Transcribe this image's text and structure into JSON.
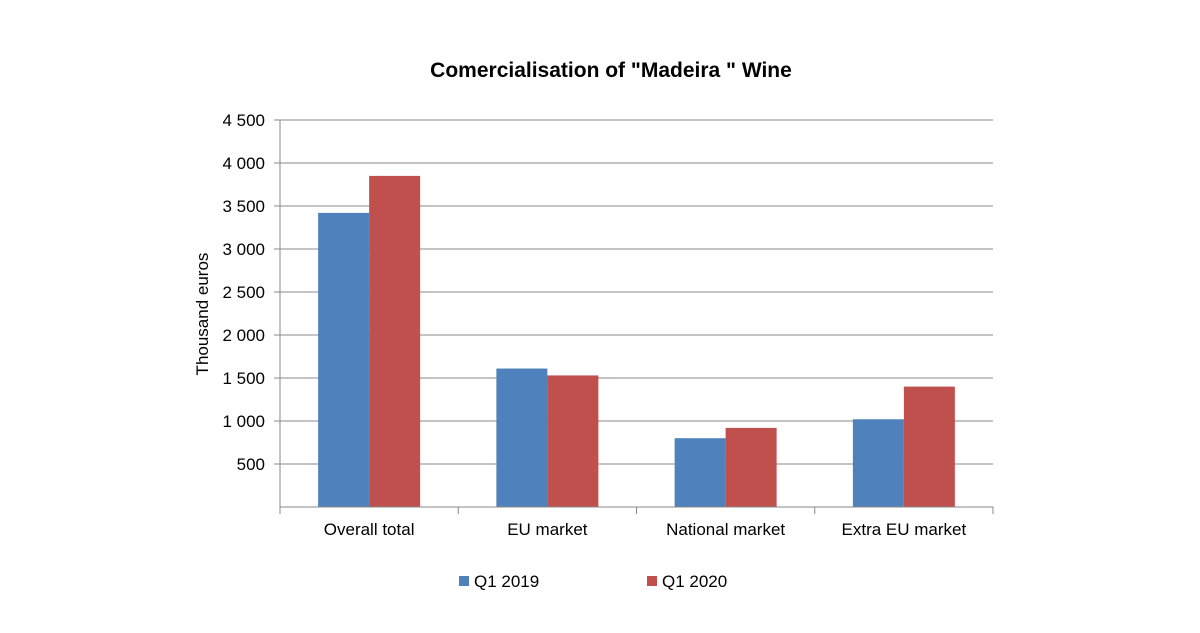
{
  "chart_data": {
    "type": "bar",
    "title": "Comercialisation of \"Madeira \" Wine",
    "xlabel": "",
    "ylabel": "Thousand euros",
    "ylim": [
      0,
      4500
    ],
    "yticks": [
      500,
      1000,
      1500,
      2000,
      2500,
      3000,
      3500,
      4000,
      4500
    ],
    "ytick_labels": [
      "500",
      "1 000",
      "1 500",
      "2 000",
      "2 500",
      "3 000",
      "3 500",
      "4 000",
      "4 500"
    ],
    "categories": [
      "Overall total",
      "EU market",
      "National market",
      "Extra EU market"
    ],
    "series": [
      {
        "name": "Q1 2019",
        "color": "#4F81BD",
        "values": [
          3420,
          1610,
          800,
          1020
        ]
      },
      {
        "name": "Q1 2020",
        "color": "#C0504D",
        "values": [
          3850,
          1530,
          920,
          1400
        ]
      }
    ],
    "grid": true,
    "gridline_color": "#888888",
    "legend_position": "bottom"
  }
}
